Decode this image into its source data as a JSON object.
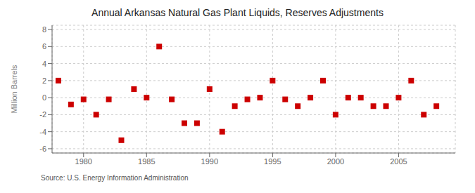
{
  "chart_data": {
    "type": "scatter",
    "title": "Annual Arkansas Natural Gas Plant Liquids, Reserves Adjustments",
    "y_label": "Million Barrels",
    "annotation": "Source: U.S. Energy Information Administration",
    "x": [
      1978,
      1979,
      1980,
      1981,
      1982,
      1983,
      1984,
      1985,
      1986,
      1987,
      1988,
      1989,
      1990,
      1991,
      1992,
      1993,
      1994,
      1995,
      1996,
      1997,
      1998,
      1999,
      2000,
      2001,
      2002,
      2003,
      2004,
      2005,
      2006,
      2007,
      2008
    ],
    "values": [
      2.0,
      -0.8,
      -0.2,
      -2.0,
      -0.2,
      -5.0,
      1.0,
      0.0,
      6.0,
      -0.2,
      -3.0,
      -3.0,
      1.0,
      -4.0,
      -1.0,
      -0.2,
      0.0,
      2.0,
      -0.2,
      -1.0,
      0.0,
      2.0,
      -2.0,
      0.0,
      0.0,
      -1.0,
      -1.0,
      0.0,
      2.0,
      -2.0,
      -1.0
    ],
    "color": "#cc0000",
    "marker": "square",
    "xlim": [
      1977.5,
      2009.5
    ],
    "xticks": [
      1980,
      1985,
      1990,
      1995,
      2000,
      2005
    ],
    "ylim": [
      -6.5,
      8.5
    ],
    "yticks": [
      -6,
      -4,
      -2,
      0,
      2,
      4,
      6,
      8
    ],
    "grid": true
  }
}
